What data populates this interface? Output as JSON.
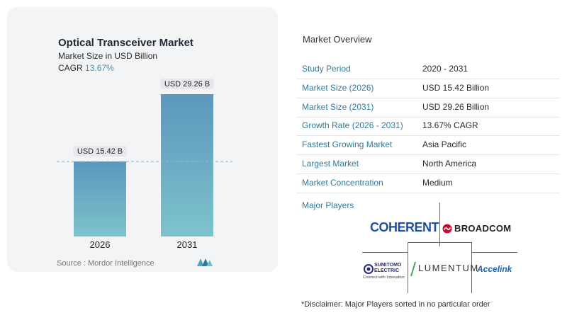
{
  "chart_data": {
    "type": "bar",
    "title": "Optical Transceiver Market",
    "subtitle": "Market Size in USD Billion",
    "cagr_label": "CAGR",
    "cagr_value": "13.67%",
    "categories": [
      "2026",
      "2031"
    ],
    "values": [
      15.42,
      29.26
    ],
    "data_labels": [
      "USD 15.42 B",
      "USD 29.26 B"
    ],
    "ylim": [
      0,
      29.26
    ],
    "grid": false,
    "reference_line": "dashed line at 2026 value",
    "colors": {
      "bar_top": "#5b97bd",
      "bar_bottom": "#7ec3cc",
      "label_bg": "#e6e8eb"
    }
  },
  "source": "Source : Mordor Intelligence",
  "overview": {
    "title": "Market Overview",
    "rows": [
      {
        "label": "Study Period",
        "value": "2020 - 2031"
      },
      {
        "label": "Market Size (2026)",
        "value": "USD 15.42 Billion"
      },
      {
        "label": "Market Size (2031)",
        "value": "USD 29.26 Billion"
      },
      {
        "label": "Growth Rate (2026 - 2031)",
        "value": "13.67% CAGR"
      },
      {
        "label": "Fastest Growing Market",
        "value": "Asia Pacific"
      },
      {
        "label": "Largest Market",
        "value": "North America"
      },
      {
        "label": "Market Concentration",
        "value": "Medium"
      }
    ]
  },
  "players": {
    "title": "Major Players",
    "logos": [
      {
        "text": "COHERENT",
        "icon": "coherent-logo"
      },
      {
        "text": "BROADCOM",
        "icon": "broadcom-logo"
      },
      {
        "text": "SUMITOMO ELECTRIC",
        "sub": "Connect with Innovation",
        "icon": "sumitomo-logo"
      },
      {
        "text": "LUMENTUM",
        "icon": "lumentum-logo"
      },
      {
        "text": "Accelink",
        "icon": "accelink-logo"
      }
    ]
  },
  "disclaimer": "*Disclaimer: Major Players sorted in no particular order",
  "accent": "#2f7a9a"
}
